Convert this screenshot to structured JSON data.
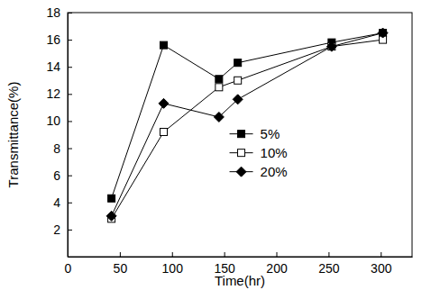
{
  "chart_data": {
    "type": "line",
    "x_label": "Time(hr)",
    "y_label": "Transmittance(%)",
    "x": [
      42,
      92,
      145,
      163,
      253,
      302
    ],
    "series": [
      {
        "name": "5%",
        "color": "#000000",
        "marker": "square",
        "values": [
          4.3,
          15.6,
          13.1,
          14.3,
          15.8,
          16.5
        ]
      },
      {
        "name": "10%",
        "color": "#000000",
        "marker": "open-square",
        "values": [
          2.8,
          9.2,
          12.5,
          13.0,
          15.5,
          16.0
        ]
      },
      {
        "name": "20%",
        "color": "#000000",
        "marker": "diamond",
        "values": [
          3.0,
          11.3,
          10.3,
          11.6,
          15.5,
          16.5
        ]
      }
    ],
    "xlim": [
      0,
      330
    ],
    "xticks": [
      0,
      50,
      100,
      150,
      200,
      250,
      300
    ],
    "ylim": [
      0,
      18
    ],
    "yticks": [
      2,
      4,
      6,
      8,
      10,
      12,
      14,
      16,
      18
    ],
    "grid": false,
    "legend": "center"
  }
}
